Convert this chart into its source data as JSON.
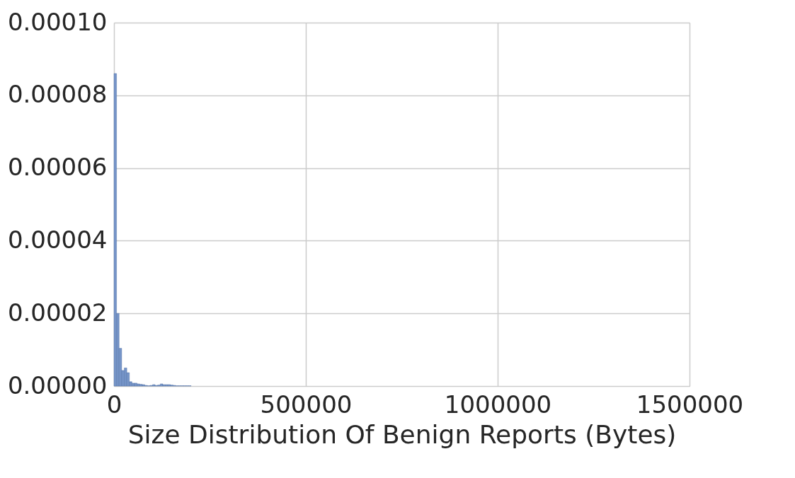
{
  "chart_data": {
    "type": "histogram",
    "xlabel": "Size Distribution Of Benign Reports (Bytes)",
    "color": "#7594c8",
    "bins": [
      0,
      6700,
      13400,
      20100,
      26800,
      33500,
      40200,
      46900,
      53600,
      60300,
      67000,
      73700,
      80400,
      87100,
      93800,
      100500,
      107200,
      113900,
      120600,
      127300,
      134000,
      140700,
      147400,
      154100,
      160800,
      167500,
      174200,
      180900,
      187600,
      194300,
      201000
    ],
    "values": [
      8.6e-05,
      2e-05,
      1.04e-05,
      4.3e-06,
      5e-06,
      3.7e-06,
      1.2e-06,
      8e-07,
      8e-07,
      6e-07,
      5e-07,
      4e-07,
      2e-07,
      1e-07,
      2e-07,
      4e-07,
      2e-07,
      3e-07,
      6e-07,
      4e-07,
      4e-07,
      4e-07,
      3e-07,
      2e-07,
      1e-07,
      1e-07,
      1e-07,
      1e-07,
      1e-07,
      1e-07
    ],
    "xlim": [
      0,
      1500000
    ],
    "xticks": [
      0,
      500000,
      1000000,
      1500000
    ],
    "ylim": [
      0,
      0.0001
    ],
    "yticks": [
      {
        "value": 0,
        "label": "0.00000"
      },
      {
        "value": 2e-05,
        "label": "0.00002"
      },
      {
        "value": 4e-05,
        "label": "0.00004"
      },
      {
        "value": 6e-05,
        "label": "0.00006"
      },
      {
        "value": 8e-05,
        "label": "0.00008"
      },
      {
        "value": 0.0001,
        "label": "0.00010"
      }
    ],
    "grid": true
  }
}
